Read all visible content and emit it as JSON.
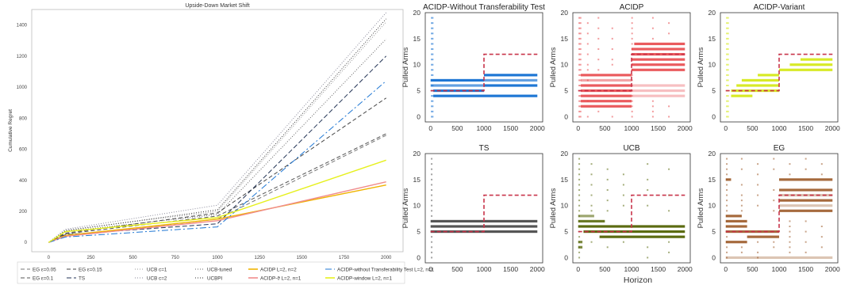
{
  "figure": {
    "shared_xlabel": "Horizon"
  },
  "chart_data": [
    {
      "type": "line",
      "title": "Upside-Down Market Shift",
      "xlabel": "Horizon",
      "ylabel": "Cumulative Regret",
      "xlim": [
        -100,
        2100
      ],
      "ylim": [
        -60,
        1500
      ],
      "xticks": [
        0,
        250,
        500,
        750,
        1000,
        1250,
        1500,
        1750,
        2000
      ],
      "yticks": [
        0,
        200,
        400,
        600,
        800,
        1000,
        1200,
        1400
      ],
      "x": [
        0,
        100,
        1000,
        2000
      ],
      "legend_placement": "below",
      "series": [
        {
          "name": "EG ε=0.05",
          "values": [
            0,
            40,
            150,
            690
          ],
          "color": "#777777",
          "dash": "5,3"
        },
        {
          "name": "EG ε=0.1",
          "values": [
            0,
            55,
            170,
            700
          ],
          "color": "#555555",
          "dash": "5,3"
        },
        {
          "name": "EG ε=0.15",
          "values": [
            0,
            60,
            190,
            930
          ],
          "color": "#444444",
          "dash": "5,3"
        },
        {
          "name": "TS",
          "values": [
            0,
            50,
            120,
            1200
          ],
          "color": "#223355",
          "dash": "6,3"
        },
        {
          "name": "UCB c=1",
          "values": [
            0,
            80,
            200,
            1420
          ],
          "color": "#999999",
          "dash": "1,2"
        },
        {
          "name": "UCB c=2",
          "values": [
            0,
            85,
            240,
            1480
          ],
          "color": "#8a8a9a",
          "dash": "1,2"
        },
        {
          "name": "UCB-tuned",
          "values": [
            0,
            70,
            180,
            1310
          ],
          "color": "#666666",
          "dash": "1,2"
        },
        {
          "name": "UCBPI",
          "values": [
            0,
            75,
            210,
            1440
          ],
          "color": "#333333",
          "dash": "1,2"
        },
        {
          "name": "ACIDP L=2, n=2",
          "values": [
            0,
            45,
            150,
            370
          ],
          "color": "#f0b400",
          "dash": ""
        },
        {
          "name": "ACIDP-ϑ L=2, n=1",
          "values": [
            0,
            40,
            140,
            390
          ],
          "color": "#f08c8c",
          "dash": ""
        },
        {
          "name": "ACIDP-without Transferability Test L=2, n=1",
          "values": [
            0,
            35,
            100,
            1040
          ],
          "color": "#1f77d4",
          "dash": "8,3,2,3"
        },
        {
          "name": "ACIDP-window L=2, n=1",
          "values": [
            0,
            70,
            160,
            530
          ],
          "color": "#e6f01e",
          "dash": ""
        }
      ]
    },
    {
      "type": "scatter",
      "title": "ACIDP-Without Transferability Test",
      "ylabel": "Pulled Arms",
      "xlim": [
        -100,
        2100
      ],
      "ylim": [
        -1,
        20
      ],
      "xticks": [
        0,
        500,
        1000,
        1500,
        2000
      ],
      "yticks": [
        0,
        5,
        10,
        15,
        20
      ],
      "color": "#1f77d4",
      "bands": [
        {
          "arm": 4,
          "from": 50,
          "to": 2000,
          "opacity": 1.0
        },
        {
          "arm": 5,
          "from": 50,
          "to": 1000,
          "opacity": 1.0
        },
        {
          "arm": 6,
          "from": 0,
          "to": 1000,
          "opacity": 0.7
        },
        {
          "arm": 7,
          "from": 0,
          "to": 1000,
          "opacity": 1.0
        },
        {
          "arm": 6,
          "from": 1000,
          "to": 2000,
          "opacity": 1.0
        },
        {
          "arm": 7,
          "from": 1000,
          "to": 2000,
          "opacity": 0.7
        },
        {
          "arm": 8,
          "from": 1000,
          "to": 2000,
          "opacity": 1.0
        }
      ],
      "dots": [
        {
          "x": 20,
          "arms": [
            0,
            1,
            2,
            3,
            4,
            5,
            6,
            7,
            8,
            9,
            10,
            11,
            12,
            13,
            14,
            15,
            16,
            17,
            18,
            19
          ]
        },
        {
          "x": 40,
          "arms": [
            0,
            1,
            2,
            3,
            4,
            5,
            6,
            7,
            8,
            9,
            10,
            11,
            12,
            13,
            14,
            15,
            16,
            17,
            18,
            19
          ]
        }
      ],
      "best_arm": {
        "x": [
          0,
          1000,
          1000,
          2000
        ],
        "y": [
          5,
          5,
          12,
          12
        ],
        "color": "#c8344a"
      }
    },
    {
      "type": "scatter",
      "title": "ACIDP",
      "ylabel": "Pulled Arms",
      "xlim": [
        -100,
        2100
      ],
      "ylim": [
        -1,
        20
      ],
      "xticks": [
        0,
        500,
        1000,
        1500,
        2000
      ],
      "yticks": [
        0,
        5,
        10,
        15,
        20
      ],
      "color": "#e8494d",
      "bands": [
        {
          "arm": 2,
          "from": 50,
          "to": 1000,
          "opacity": 0.9
        },
        {
          "arm": 3,
          "from": 50,
          "to": 1000,
          "opacity": 0.9
        },
        {
          "arm": 4,
          "from": 50,
          "to": 1000,
          "opacity": 0.9
        },
        {
          "arm": 5,
          "from": 50,
          "to": 1000,
          "opacity": 0.9
        },
        {
          "arm": 6,
          "from": 50,
          "to": 1000,
          "opacity": 0.9
        },
        {
          "arm": 7,
          "from": 50,
          "to": 1000,
          "opacity": 0.5
        },
        {
          "arm": 8,
          "from": 50,
          "to": 1000,
          "opacity": 0.9
        },
        {
          "arm": 9,
          "from": 1000,
          "to": 2000,
          "opacity": 0.9
        },
        {
          "arm": 10,
          "from": 1000,
          "to": 2000,
          "opacity": 0.9
        },
        {
          "arm": 11,
          "from": 1000,
          "to": 2000,
          "opacity": 0.9
        },
        {
          "arm": 12,
          "from": 1000,
          "to": 2000,
          "opacity": 0.9
        },
        {
          "arm": 13,
          "from": 1000,
          "to": 2000,
          "opacity": 0.9
        },
        {
          "arm": 14,
          "from": 1050,
          "to": 2000,
          "opacity": 0.9
        },
        {
          "arm": 4,
          "from": 1000,
          "to": 2000,
          "opacity": 0.35
        },
        {
          "arm": 5,
          "from": 1000,
          "to": 2000,
          "opacity": 0.35
        },
        {
          "arm": 6,
          "from": 1000,
          "to": 2000,
          "opacity": 0.35
        }
      ],
      "dots": [
        {
          "x": 20,
          "arms": [
            0,
            1,
            2,
            3,
            4,
            5,
            6,
            7,
            8,
            9,
            10,
            11,
            12,
            13,
            14,
            15,
            16,
            17,
            18,
            19
          ]
        },
        {
          "x": 45,
          "arms": [
            0,
            1,
            2,
            3,
            4,
            5,
            6,
            7,
            8,
            9,
            10,
            11,
            12,
            13,
            14,
            15,
            16,
            17,
            18,
            19
          ]
        },
        {
          "x": 180,
          "arms": [
            0,
            3,
            7,
            9,
            10,
            12,
            14,
            16,
            18
          ]
        },
        {
          "x": 380,
          "arms": [
            1,
            9,
            11,
            13,
            15,
            17,
            19
          ]
        },
        {
          "x": 640,
          "arms": [
            0,
            10,
            11,
            13,
            15,
            17
          ]
        },
        {
          "x": 1010,
          "arms": [
            0,
            1,
            2,
            3,
            4,
            5,
            6,
            7,
            8,
            9,
            10,
            11,
            12,
            13,
            14,
            15,
            16,
            17,
            18,
            19
          ]
        },
        {
          "x": 1400,
          "arms": [
            0,
            1,
            2,
            3,
            15,
            17,
            19
          ]
        },
        {
          "x": 1700,
          "arms": [
            0,
            2,
            16,
            18
          ]
        }
      ],
      "best_arm": {
        "x": [
          0,
          1000,
          1000,
          2000
        ],
        "y": [
          5,
          5,
          12,
          12
        ],
        "color": "#c8344a"
      }
    },
    {
      "type": "scatter",
      "title": "ACIDP-Variant",
      "ylabel": "Pulled Arms",
      "xlim": [
        -100,
        2100
      ],
      "ylim": [
        -1,
        20
      ],
      "xticks": [
        0,
        500,
        1000,
        1500,
        2000
      ],
      "yticks": [
        0,
        5,
        10,
        15,
        20
      ],
      "color": "#d4e810",
      "bands": [
        {
          "arm": 4,
          "from": 100,
          "to": 500,
          "opacity": 0.9
        },
        {
          "arm": 5,
          "from": 100,
          "to": 1000,
          "opacity": 0.9
        },
        {
          "arm": 6,
          "from": 200,
          "to": 1000,
          "opacity": 0.9
        },
        {
          "arm": 7,
          "from": 300,
          "to": 1000,
          "opacity": 0.9
        },
        {
          "arm": 8,
          "from": 600,
          "to": 1000,
          "opacity": 0.9
        },
        {
          "arm": 9,
          "from": 1000,
          "to": 2000,
          "opacity": 0.9
        },
        {
          "arm": 10,
          "from": 1200,
          "to": 2000,
          "opacity": 0.9
        },
        {
          "arm": 11,
          "from": 1400,
          "to": 2000,
          "opacity": 0.9
        }
      ],
      "dots": [
        {
          "x": 20,
          "arms": [
            0,
            1,
            2,
            3,
            4,
            5,
            6,
            7,
            8,
            9,
            10,
            11,
            12,
            13,
            14,
            15,
            16,
            17,
            18,
            19
          ]
        },
        {
          "x": 45,
          "arms": [
            0,
            1,
            2,
            3,
            4,
            5,
            6,
            7,
            8,
            9,
            10,
            11,
            12,
            13,
            14,
            15,
            16,
            17,
            18,
            19
          ]
        }
      ],
      "best_arm": {
        "x": [
          0,
          1000,
          1000,
          2000
        ],
        "y": [
          5,
          5,
          12,
          12
        ],
        "color": "#c8344a"
      }
    },
    {
      "type": "scatter",
      "title": "TS",
      "ylabel": "Pulled Arms",
      "xlim": [
        -100,
        2100
      ],
      "ylim": [
        -1,
        20
      ],
      "xticks": [
        0,
        500,
        1000,
        1500,
        2000
      ],
      "yticks": [
        0,
        5,
        10,
        15,
        20
      ],
      "color": "#555555",
      "bands": [
        {
          "arm": 5,
          "from": 0,
          "to": 2000,
          "opacity": 1.0
        },
        {
          "arm": 6,
          "from": 0,
          "to": 2000,
          "opacity": 1.0
        },
        {
          "arm": 7,
          "from": 0,
          "to": 2000,
          "opacity": 1.0
        }
      ],
      "dots": [
        {
          "x": 20,
          "arms": [
            0,
            1,
            2,
            3,
            4,
            5,
            6,
            7,
            8,
            9,
            10,
            11,
            12,
            13,
            14,
            15,
            16,
            17,
            18,
            19
          ]
        }
      ],
      "best_arm": {
        "x": [
          0,
          1000,
          1000,
          2000
        ],
        "y": [
          5,
          5,
          12,
          12
        ],
        "color": "#c8344a"
      }
    },
    {
      "type": "scatter",
      "title": "UCB",
      "ylabel": "Pulled Arms",
      "xlim": [
        -100,
        2100
      ],
      "ylim": [
        -1,
        20
      ],
      "xticks": [
        0,
        500,
        1000,
        1500,
        2000
      ],
      "yticks": [
        0,
        5,
        10,
        15,
        20
      ],
      "color": "#5b6b10",
      "bands": [
        {
          "arm": 4,
          "from": 400,
          "to": 2000,
          "opacity": 1.0
        },
        {
          "arm": 5,
          "from": 100,
          "to": 2000,
          "opacity": 1.0
        },
        {
          "arm": 6,
          "from": 0,
          "to": 2000,
          "opacity": 1.0
        },
        {
          "arm": 7,
          "from": 0,
          "to": 500,
          "opacity": 0.9
        },
        {
          "arm": 8,
          "from": 0,
          "to": 300,
          "opacity": 0.6
        },
        {
          "arm": 2,
          "from": 0,
          "to": 80,
          "opacity": 0.8
        },
        {
          "arm": 3,
          "from": 0,
          "to": 80,
          "opacity": 0.8
        }
      ],
      "dots": [
        {
          "x": 20,
          "arms": [
            0,
            1,
            2,
            3,
            4,
            5,
            6,
            7,
            8,
            9,
            10,
            11,
            12,
            13,
            14,
            15,
            16,
            17,
            18,
            19
          ]
        },
        {
          "x": 250,
          "arms": [
            3,
            9,
            10,
            12,
            14,
            16,
            18
          ]
        },
        {
          "x": 550,
          "arms": [
            2,
            9,
            11,
            13,
            15,
            17
          ]
        },
        {
          "x": 850,
          "arms": [
            3,
            10,
            12,
            14,
            16
          ]
        },
        {
          "x": 1300,
          "arms": [
            0,
            2,
            10,
            13,
            15,
            18
          ]
        },
        {
          "x": 1700,
          "arms": [
            1,
            3,
            9,
            12,
            17
          ]
        }
      ],
      "best_arm": {
        "x": [
          0,
          1000,
          1000,
          2000
        ],
        "y": [
          5,
          5,
          12,
          12
        ],
        "color": "#c8344a"
      }
    },
    {
      "type": "scatter",
      "title": "EG",
      "ylabel": "Pulled Arms",
      "xlim": [
        -100,
        2100
      ],
      "ylim": [
        -1,
        20
      ],
      "xticks": [
        0,
        500,
        1000,
        1500,
        2000
      ],
      "yticks": [
        0,
        5,
        10,
        15,
        20
      ],
      "color": "#9c5a28",
      "bands": [
        {
          "arm": 3,
          "from": 0,
          "to": 400,
          "opacity": 0.9
        },
        {
          "arm": 4,
          "from": 400,
          "to": 1000,
          "opacity": 0.9
        },
        {
          "arm": 5,
          "from": 0,
          "to": 1000,
          "opacity": 0.9
        },
        {
          "arm": 6,
          "from": 0,
          "to": 400,
          "opacity": 0.9
        },
        {
          "arm": 7,
          "from": 0,
          "to": 400,
          "opacity": 0.9
        },
        {
          "arm": 8,
          "from": 0,
          "to": 300,
          "opacity": 0.9
        },
        {
          "arm": 0,
          "from": 0,
          "to": 2000,
          "opacity": 0.35
        },
        {
          "arm": 9,
          "from": 1000,
          "to": 2000,
          "opacity": 0.9
        },
        {
          "arm": 10,
          "from": 1000,
          "to": 2000,
          "opacity": 0.35
        },
        {
          "arm": 11,
          "from": 1000,
          "to": 2000,
          "opacity": 0.9
        },
        {
          "arm": 12,
          "from": 1000,
          "to": 2000,
          "opacity": 0.35
        },
        {
          "arm": 13,
          "from": 1000,
          "to": 2000,
          "opacity": 0.9
        },
        {
          "arm": 15,
          "from": 1000,
          "to": 2000,
          "opacity": 0.9
        },
        {
          "arm": 15,
          "from": 0,
          "to": 100,
          "opacity": 0.9
        }
      ],
      "dots": [
        {
          "x": 20,
          "arms": [
            0,
            1,
            2,
            3,
            4,
            5,
            6,
            7,
            8,
            9,
            10,
            11,
            12,
            13,
            14,
            15,
            16,
            17,
            18,
            19
          ]
        },
        {
          "x": 300,
          "arms": [
            1,
            2,
            9,
            10,
            11,
            12,
            14,
            17,
            19
          ]
        },
        {
          "x": 600,
          "arms": [
            0,
            1,
            3,
            10,
            12,
            14,
            16,
            18
          ]
        },
        {
          "x": 900,
          "arms": [
            2,
            3,
            9,
            11,
            13,
            17,
            19
          ]
        },
        {
          "x": 1200,
          "arms": [
            1,
            2,
            3,
            4,
            5,
            6,
            7,
            16,
            18
          ]
        },
        {
          "x": 1500,
          "arms": [
            1,
            3,
            5,
            7,
            17,
            19
          ]
        },
        {
          "x": 1800,
          "arms": [
            2,
            4,
            6,
            16,
            18
          ]
        }
      ],
      "best_arm": {
        "x": [
          0,
          1000,
          1000,
          2000
        ],
        "y": [
          5,
          5,
          12,
          12
        ],
        "color": "#c8344a"
      }
    }
  ]
}
